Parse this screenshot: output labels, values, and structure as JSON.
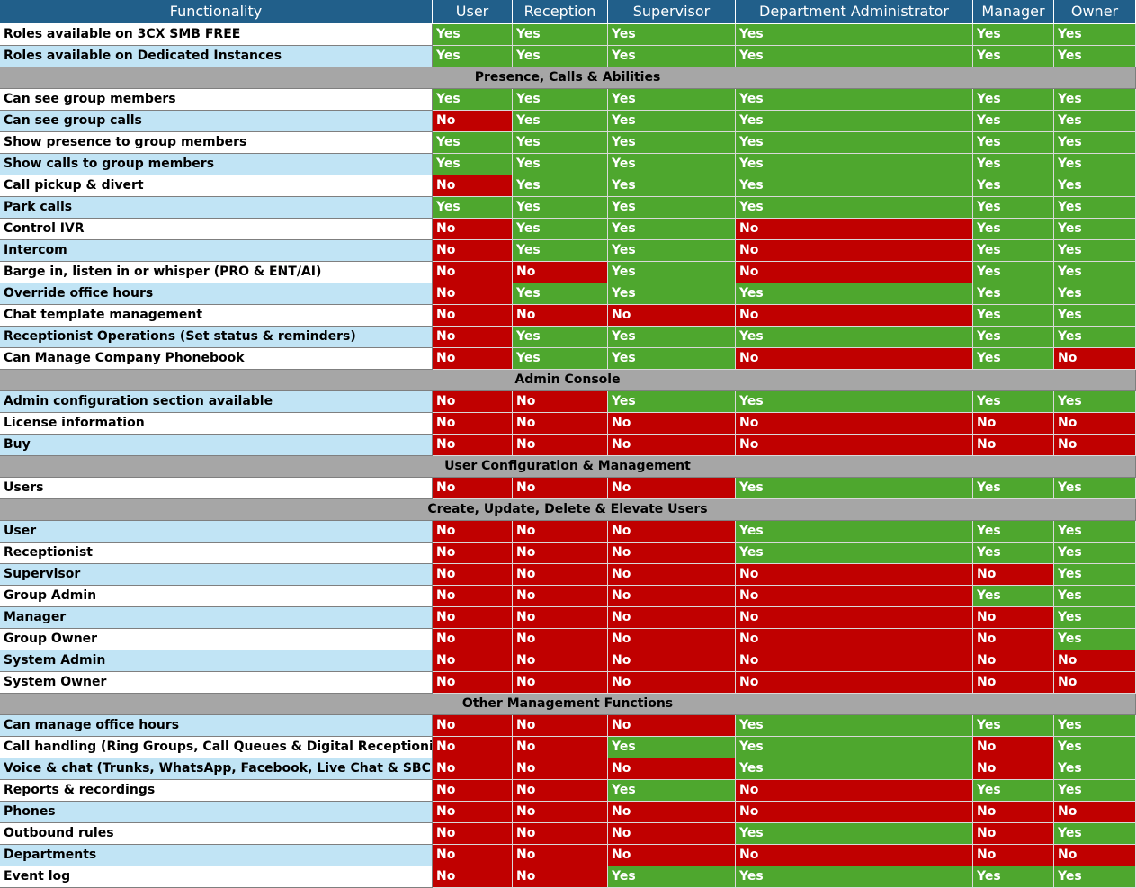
{
  "table": {
    "columns": [
      "Functionality",
      "User",
      "Reception",
      "Supervisor",
      "Department Administrator",
      "Manager",
      "Owner"
    ],
    "header_color": "#215f8a",
    "section_color": "#a6a6a6",
    "row_colors": [
      "#ffffff",
      "#c1e4f5"
    ],
    "cell_colors": {
      "Yes": "#4ea72e",
      "No": "#c00000"
    },
    "rows": [
      {
        "label": "Roles available on 3CX SMB FREE",
        "cells": [
          "Yes",
          "Yes",
          "Yes",
          "Yes",
          "Yes",
          "Yes"
        ]
      },
      {
        "label": "Roles available on Dedicated Instances",
        "cells": [
          "Yes",
          "Yes",
          "Yes",
          "Yes",
          "Yes",
          "Yes"
        ]
      },
      {
        "section": "Presence, Calls & Abilities"
      },
      {
        "label": "Can see group members",
        "cells": [
          "Yes",
          "Yes",
          "Yes",
          "Yes",
          "Yes",
          "Yes"
        ]
      },
      {
        "label": "Can see group calls",
        "cells": [
          "No",
          "Yes",
          "Yes",
          "Yes",
          "Yes",
          "Yes"
        ]
      },
      {
        "label": "Show presence to group members",
        "cells": [
          "Yes",
          "Yes",
          "Yes",
          "Yes",
          "Yes",
          "Yes"
        ]
      },
      {
        "label": "Show calls to group members",
        "cells": [
          "Yes",
          "Yes",
          "Yes",
          "Yes",
          "Yes",
          "Yes"
        ]
      },
      {
        "label": "Call pickup & divert",
        "cells": [
          "No",
          "Yes",
          "Yes",
          "Yes",
          "Yes",
          "Yes"
        ]
      },
      {
        "label": "Park calls",
        "cells": [
          "Yes",
          "Yes",
          "Yes",
          "Yes",
          "Yes",
          "Yes"
        ]
      },
      {
        "label": "Control IVR",
        "cells": [
          "No",
          "Yes",
          "Yes",
          "No",
          "Yes",
          "Yes"
        ]
      },
      {
        "label": "Intercom",
        "cells": [
          "No",
          "Yes",
          "Yes",
          "No",
          "Yes",
          "Yes"
        ]
      },
      {
        "label": "Barge in, listen in or whisper (PRO & ENT/AI)",
        "cells": [
          "No",
          "No",
          "Yes",
          "No",
          "Yes",
          "Yes"
        ]
      },
      {
        "label": "Override office hours",
        "cells": [
          "No",
          "Yes",
          "Yes",
          "Yes",
          "Yes",
          "Yes"
        ]
      },
      {
        "label": "Chat template management",
        "cells": [
          "No",
          "No",
          "No",
          "No",
          "Yes",
          "Yes"
        ]
      },
      {
        "label": "Receptionist Operations (Set status & reminders)",
        "cells": [
          "No",
          "Yes",
          "Yes",
          "Yes",
          "Yes",
          "Yes"
        ]
      },
      {
        "label": "Can Manage Company Phonebook",
        "cells": [
          "No",
          "Yes",
          "Yes",
          "No",
          "Yes",
          "No"
        ]
      },
      {
        "section": "Admin Console"
      },
      {
        "label": "Admin configuration section available",
        "cells": [
          "No",
          "No",
          "Yes",
          "Yes",
          "Yes",
          "Yes"
        ]
      },
      {
        "label": "License information",
        "cells": [
          "No",
          "No",
          "No",
          "No",
          "No",
          "No"
        ]
      },
      {
        "label": "Buy",
        "cells": [
          "No",
          "No",
          "No",
          "No",
          "No",
          "No"
        ]
      },
      {
        "section": "User Configuration & Management"
      },
      {
        "label": "Users",
        "cells": [
          "No",
          "No",
          "No",
          "Yes",
          "Yes",
          "Yes"
        ]
      },
      {
        "section": "Create, Update, Delete & Elevate Users"
      },
      {
        "label": "User",
        "cells": [
          "No",
          "No",
          "No",
          "Yes",
          "Yes",
          "Yes"
        ]
      },
      {
        "label": "Receptionist",
        "cells": [
          "No",
          "No",
          "No",
          "Yes",
          "Yes",
          "Yes"
        ]
      },
      {
        "label": "Supervisor",
        "cells": [
          "No",
          "No",
          "No",
          "No",
          "No",
          "Yes"
        ]
      },
      {
        "label": "Group Admin",
        "cells": [
          "No",
          "No",
          "No",
          "No",
          "Yes",
          "Yes"
        ]
      },
      {
        "label": "Manager",
        "cells": [
          "No",
          "No",
          "No",
          "No",
          "No",
          "Yes"
        ]
      },
      {
        "label": "Group Owner",
        "cells": [
          "No",
          "No",
          "No",
          "No",
          "No",
          "Yes"
        ]
      },
      {
        "label": "System Admin",
        "cells": [
          "No",
          "No",
          "No",
          "No",
          "No",
          "No"
        ]
      },
      {
        "label": "System Owner",
        "cells": [
          "No",
          "No",
          "No",
          "No",
          "No",
          "No"
        ]
      },
      {
        "section": "Other Management Functions"
      },
      {
        "label": "Can manage office hours",
        "cells": [
          "No",
          "No",
          "No",
          "Yes",
          "Yes",
          "Yes"
        ]
      },
      {
        "label": "Call handling (Ring Groups, Call Queues & Digital Receptionist)",
        "cells": [
          "No",
          "No",
          "Yes",
          "Yes",
          "No",
          "Yes"
        ]
      },
      {
        "label": "Voice & chat (Trunks, WhatsApp, Facebook, Live Chat & SBC)",
        "cells": [
          "No",
          "No",
          "No",
          "Yes",
          "No",
          "Yes"
        ]
      },
      {
        "label": "Reports & recordings",
        "cells": [
          "No",
          "No",
          "Yes",
          "No",
          "Yes",
          "Yes"
        ]
      },
      {
        "label": "Phones",
        "cells": [
          "No",
          "No",
          "No",
          "No",
          "No",
          "No"
        ]
      },
      {
        "label": "Outbound rules",
        "cells": [
          "No",
          "No",
          "No",
          "Yes",
          "No",
          "Yes"
        ]
      },
      {
        "label": "Departments",
        "cells": [
          "No",
          "No",
          "No",
          "No",
          "No",
          "No"
        ]
      },
      {
        "label": "Event log",
        "cells": [
          "No",
          "No",
          "Yes",
          "Yes",
          "Yes",
          "Yes"
        ]
      }
    ]
  }
}
